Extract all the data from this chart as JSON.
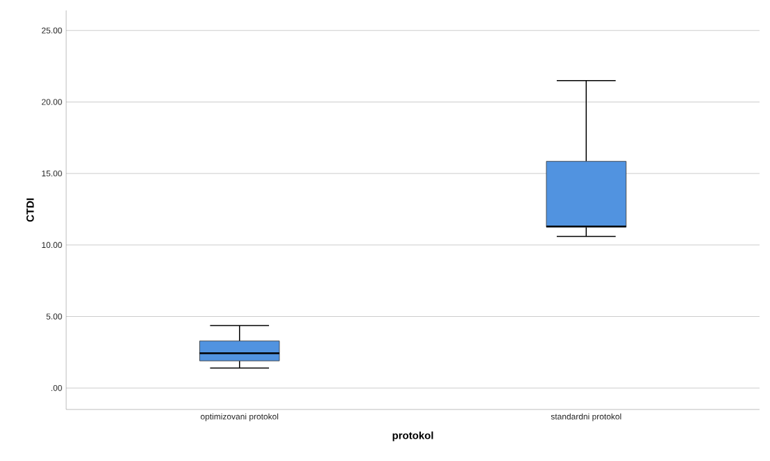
{
  "chart_data": {
    "type": "box",
    "xlabel": "protokol",
    "ylabel": "CTDI",
    "categories": [
      "optimizovani protokol",
      "standardni protokol"
    ],
    "boxes": [
      {
        "low": 1.4,
        "q1": 1.9,
        "median": 2.43,
        "q3": 3.29,
        "high": 4.37
      },
      {
        "low": 10.6,
        "q1": 11.25,
        "median": 11.3,
        "q3": 15.85,
        "high": 21.5
      }
    ],
    "color": "#5193e0",
    "ylim": [
      -1.5,
      26.4
    ],
    "yticks": [
      {
        "value": 0,
        "label": ".00"
      },
      {
        "value": 5,
        "label": "5.00"
      },
      {
        "value": 10,
        "label": "10.00"
      },
      {
        "value": 15,
        "label": "15.00"
      },
      {
        "value": 20,
        "label": "20.00"
      },
      {
        "value": 25,
        "label": "25.00"
      }
    ],
    "grid": "y"
  }
}
